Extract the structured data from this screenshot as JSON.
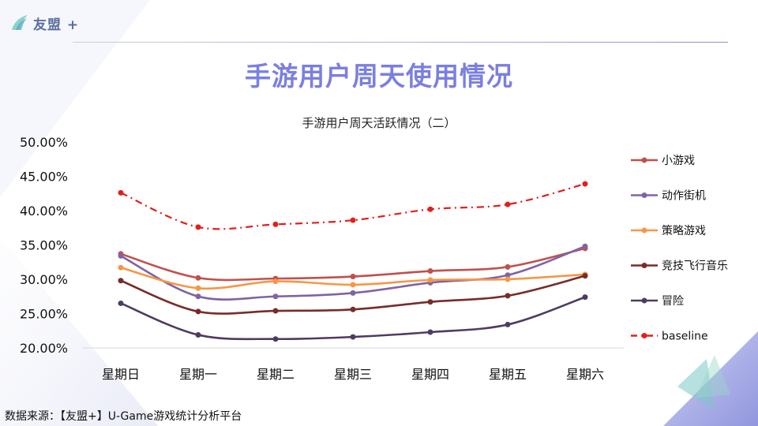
{
  "header": {
    "logo_text": "友盟 +"
  },
  "slide_title": "手游用户周天使用情况",
  "footer": {
    "source": "数据来源：【友盟+】U-Game游戏统计分析平台"
  },
  "chart_data": {
    "type": "line",
    "title": "手游用户周天活跃情况（二）",
    "categories": [
      "星期日",
      "星期一",
      "星期二",
      "星期三",
      "星期四",
      "星期五",
      "星期六"
    ],
    "y_ticks": [
      "50.00%",
      "45.00%",
      "40.00%",
      "35.00%",
      "30.00%",
      "25.00%",
      "20.00%"
    ],
    "ylim": [
      20,
      50
    ],
    "legend_position": "right",
    "grid": false,
    "series": [
      {
        "name": "小游戏",
        "color": "#c0504d",
        "style": "solid",
        "values": [
          33.7,
          30.2,
          30.1,
          30.4,
          31.2,
          31.8,
          34.5
        ]
      },
      {
        "name": "动作街机",
        "color": "#8064a2",
        "style": "solid",
        "values": [
          33.4,
          27.5,
          27.5,
          28.0,
          29.5,
          30.6,
          34.8
        ]
      },
      {
        "name": "策略游戏",
        "color": "#f79646",
        "style": "solid",
        "values": [
          31.7,
          28.7,
          29.7,
          29.2,
          29.9,
          30.0,
          30.7
        ]
      },
      {
        "name": "竞技飞行音乐",
        "color": "#772c2a",
        "style": "solid",
        "values": [
          29.8,
          25.3,
          25.4,
          25.6,
          26.7,
          27.6,
          30.5
        ]
      },
      {
        "name": "冒险",
        "color": "#4f3b62",
        "style": "solid",
        "values": [
          26.5,
          21.9,
          21.3,
          21.6,
          22.3,
          23.4,
          27.4
        ]
      },
      {
        "name": "baseline",
        "color": "#e0201c",
        "style": "dashdot",
        "values": [
          42.6,
          37.6,
          38.0,
          38.6,
          40.2,
          40.9,
          43.9
        ]
      }
    ]
  }
}
